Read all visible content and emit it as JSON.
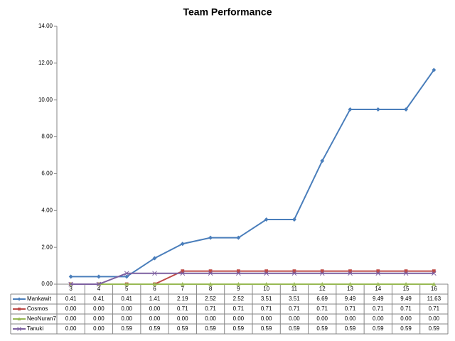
{
  "chart_data": {
    "type": "line",
    "title": "Team Performance",
    "categories": [
      "3",
      "4",
      "5",
      "6",
      "7",
      "8",
      "9",
      "10",
      "11",
      "12",
      "13",
      "14",
      "15",
      "16"
    ],
    "series": [
      {
        "name": "Mankawit",
        "color": "#4a7ebb",
        "marker": "diamond",
        "values": [
          0.41,
          0.41,
          0.41,
          1.41,
          2.19,
          2.52,
          2.52,
          3.51,
          3.51,
          6.69,
          9.49,
          9.49,
          9.49,
          11.63
        ],
        "value_labels": [
          "0.41",
          "0.41",
          "0.41",
          "1.41",
          "2.19",
          "2.52",
          "2.52",
          "3.51",
          "3.51",
          "6.69",
          "9.49",
          "9.49",
          "9.49",
          "11.63"
        ]
      },
      {
        "name": "Cosmos",
        "color": "#be4b48",
        "marker": "square",
        "values": [
          0,
          0,
          0,
          0,
          0.71,
          0.71,
          0.71,
          0.71,
          0.71,
          0.71,
          0.71,
          0.71,
          0.71,
          0.71
        ],
        "value_labels": [
          "0.00",
          "0.00",
          "0.00",
          "0.00",
          "0.71",
          "0.71",
          "0.71",
          "0.71",
          "0.71",
          "0.71",
          "0.71",
          "0.71",
          "0.71",
          "0.71"
        ]
      },
      {
        "name": "NeoNuran7",
        "color": "#98b954",
        "marker": "triangle",
        "values": [
          0,
          0,
          0,
          0,
          0,
          0,
          0,
          0,
          0,
          0,
          0,
          0,
          0,
          0
        ],
        "value_labels": [
          "0.00",
          "0.00",
          "0.00",
          "0.00",
          "0.00",
          "0.00",
          "0.00",
          "0.00",
          "0.00",
          "0.00",
          "0.00",
          "0.00",
          "0.00",
          "0.00"
        ]
      },
      {
        "name": "Tanuki",
        "color": "#7d60a0",
        "marker": "x",
        "values": [
          0,
          0,
          0.59,
          0.59,
          0.59,
          0.59,
          0.59,
          0.59,
          0.59,
          0.59,
          0.59,
          0.59,
          0.59,
          0.59
        ],
        "value_labels": [
          "0.00",
          "0.00",
          "0.59",
          "0.59",
          "0.59",
          "0.59",
          "0.59",
          "0.59",
          "0.59",
          "0.59",
          "0.59",
          "0.59",
          "0.59",
          "0.59"
        ]
      }
    ],
    "ylim": [
      0,
      14
    ],
    "yticks": [
      {
        "value": 0,
        "label": "0.00"
      },
      {
        "value": 2,
        "label": "2.00"
      },
      {
        "value": 4,
        "label": "4.00"
      },
      {
        "value": 6,
        "label": "6.00"
      },
      {
        "value": 8,
        "label": "8.00"
      },
      {
        "value": 10,
        "label": "10.00"
      },
      {
        "value": 12,
        "label": "12.00"
      },
      {
        "value": 14,
        "label": "14.00"
      }
    ],
    "grid": false,
    "data_table": true
  }
}
